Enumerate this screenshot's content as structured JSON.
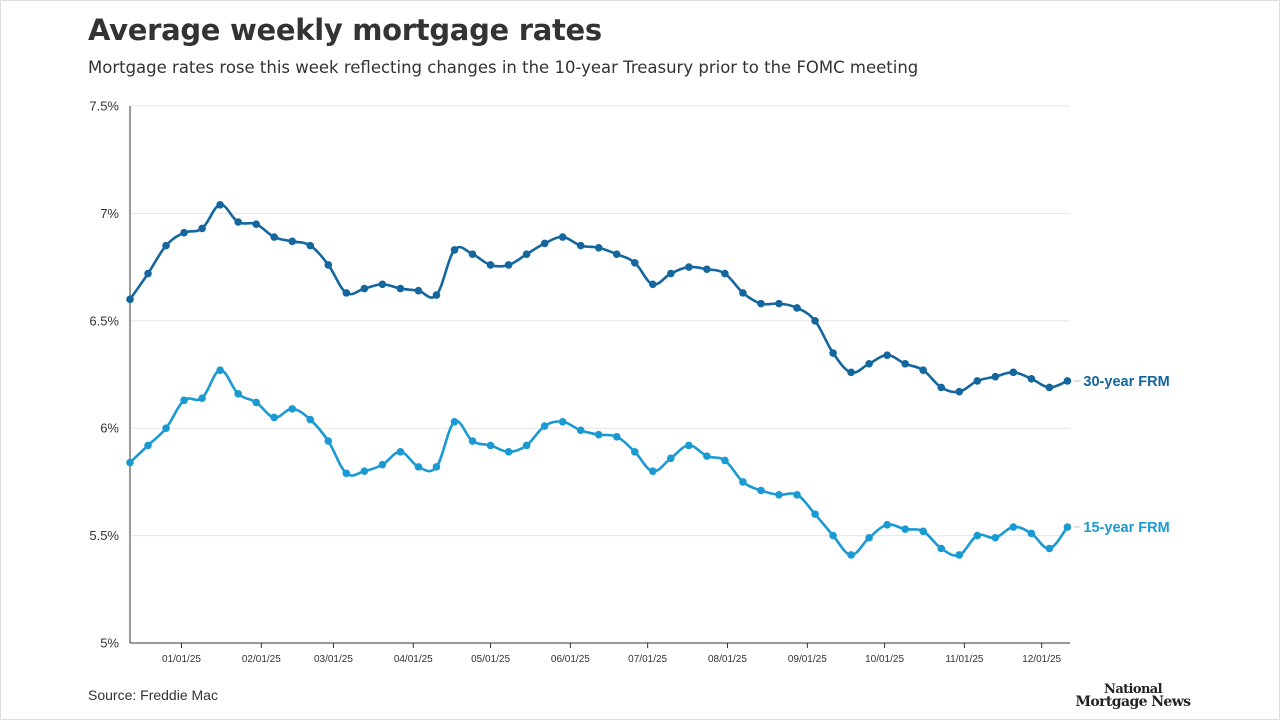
{
  "title": "Average weekly mortgage rates",
  "subtitle": "Mortgage rates rose this week reflecting changes in the 10-year Treasury prior to the FOMC meeting",
  "source": "Source: Freddie Mac",
  "logo": {
    "line1": "National",
    "line2": "Mortgage News"
  },
  "chart_data": {
    "type": "line",
    "title": "Average weekly mortgage rates",
    "subtitle": "Mortgage rates rose this week reflecting changes in the 10-year Treasury prior to the FOMC meeting",
    "xlabel": "",
    "ylabel": "",
    "x_start": "2024-12-12",
    "x_interval_days": 7,
    "x_range": [
      "2024-12-12",
      "2025-12-12"
    ],
    "ylim": [
      5,
      7.5
    ],
    "yticks": [
      5,
      5.5,
      6,
      6.5,
      7,
      7.5
    ],
    "ytick_labels": [
      "5%",
      "5.5%",
      "6%",
      "6.5%",
      "7%",
      "7.5%"
    ],
    "xticks": [
      "2025-01-01",
      "2025-02-01",
      "2025-03-01",
      "2025-04-01",
      "2025-05-01",
      "2025-06-01",
      "2025-07-01",
      "2025-08-01",
      "2025-09-01",
      "2025-10-01",
      "2025-11-01",
      "2025-12-01"
    ],
    "xtick_labels": [
      "01/01/25",
      "02/01/25",
      "03/01/25",
      "04/01/25",
      "05/01/25",
      "06/01/25",
      "07/01/25",
      "08/01/25",
      "09/01/25",
      "10/01/25",
      "11/01/25",
      "12/01/25"
    ],
    "grid": true,
    "series": [
      {
        "name": "30-year FRM",
        "color": "#13669e",
        "values": [
          6.6,
          6.72,
          6.85,
          6.91,
          6.93,
          7.04,
          6.96,
          6.95,
          6.89,
          6.87,
          6.85,
          6.76,
          6.63,
          6.65,
          6.67,
          6.65,
          6.64,
          6.62,
          6.83,
          6.81,
          6.76,
          6.76,
          6.81,
          6.86,
          6.89,
          6.85,
          6.84,
          6.81,
          6.77,
          6.67,
          6.72,
          6.75,
          6.74,
          6.72,
          6.63,
          6.58,
          6.58,
          6.56,
          6.5,
          6.35,
          6.26,
          6.3,
          6.34,
          6.3,
          6.27,
          6.19,
          6.17,
          6.22,
          6.24,
          6.26,
          6.23,
          6.19,
          6.22
        ]
      },
      {
        "name": "15-year FRM",
        "color": "#1a9ad2",
        "values": [
          5.84,
          5.92,
          6.0,
          6.13,
          6.14,
          6.27,
          6.16,
          6.12,
          6.05,
          6.09,
          6.04,
          5.94,
          5.79,
          5.8,
          5.83,
          5.89,
          5.82,
          5.82,
          6.03,
          5.94,
          5.92,
          5.89,
          5.92,
          6.01,
          6.03,
          5.99,
          5.97,
          5.96,
          5.89,
          5.8,
          5.86,
          5.92,
          5.87,
          5.85,
          5.75,
          5.71,
          5.69,
          5.69,
          5.6,
          5.5,
          5.41,
          5.49,
          5.55,
          5.53,
          5.52,
          5.44,
          5.41,
          5.5,
          5.49,
          5.54,
          5.51,
          5.44,
          5.54
        ]
      }
    ]
  }
}
